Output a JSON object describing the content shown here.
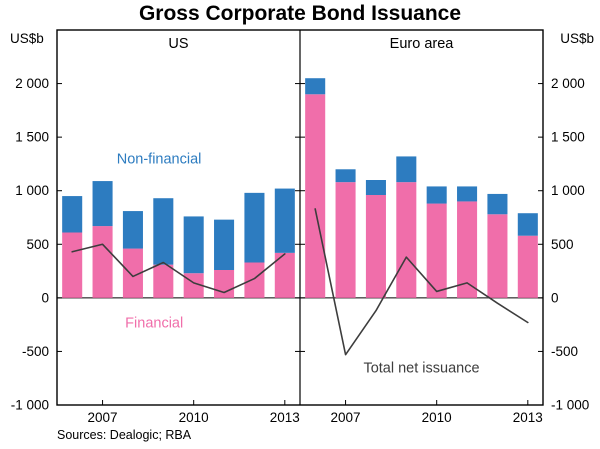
{
  "title": "Gross Corporate Bond Issuance",
  "source": "Sources: Dealogic; RBA",
  "y_axis_unit_left": "US$b",
  "y_axis_unit_right": "US$b",
  "chart_data": {
    "type": "bar",
    "stacked": true,
    "grid": false,
    "ylim": [
      -1000,
      2500
    ],
    "frame_color": "#000000",
    "line_color": "#3d3d3d",
    "years": [
      2006,
      2007,
      2008,
      2009,
      2010,
      2011,
      2012,
      2013
    ],
    "yticks": [
      {
        "label": "2 000",
        "value": 2000
      },
      {
        "label": "1 500",
        "value": 1500
      },
      {
        "label": "1 000",
        "value": 1000
      },
      {
        "label": "500",
        "value": 500
      },
      {
        "label": "0",
        "value": 0
      },
      {
        "label": "-500",
        "value": -500
      },
      {
        "label": "-1 000",
        "value": -1000
      }
    ],
    "xticks": [
      {
        "label": "2007",
        "year": 2007
      },
      {
        "label": "2010",
        "year": 2010
      },
      {
        "label": "2013",
        "year": 2013
      }
    ],
    "panels": [
      {
        "label": "US",
        "series": [
          {
            "name": "Financial",
            "color": "#f06eaa",
            "values": [
              610,
              670,
              460,
              310,
              230,
              260,
              330,
              420
            ]
          },
          {
            "name": "Non-financial",
            "color": "#2d7cc0",
            "values": [
              340,
              420,
              350,
              620,
              530,
              470,
              650,
              600
            ]
          }
        ],
        "net_line": {
          "name": "Total net issuance",
          "values": [
            430,
            500,
            200,
            330,
            140,
            50,
            180,
            410
          ]
        }
      },
      {
        "label": "Euro area",
        "series": [
          {
            "name": "Financial",
            "color": "#f06eaa",
            "values": [
              1900,
              1080,
              960,
              1080,
              880,
              900,
              780,
              580
            ]
          },
          {
            "name": "Non-financial",
            "color": "#2d7cc0",
            "values": [
              150,
              120,
              140,
              240,
              160,
              140,
              190,
              210
            ]
          }
        ],
        "net_line": {
          "name": "Total net issuance",
          "values": [
            830,
            -530,
            -120,
            380,
            60,
            140,
            -50,
            -230
          ]
        }
      }
    ],
    "annotations": [
      {
        "text": "Non-financial",
        "color": "#2d7cc0",
        "panel": 0,
        "xf": 0.42,
        "y": 1300
      },
      {
        "text": "Financial",
        "color": "#f06eaa",
        "panel": 0,
        "xf": 0.4,
        "y": -230
      },
      {
        "text": "Total net issuance",
        "color": "#3d3d3d",
        "panel": 1,
        "xf": 0.5,
        "y": -650
      }
    ]
  }
}
